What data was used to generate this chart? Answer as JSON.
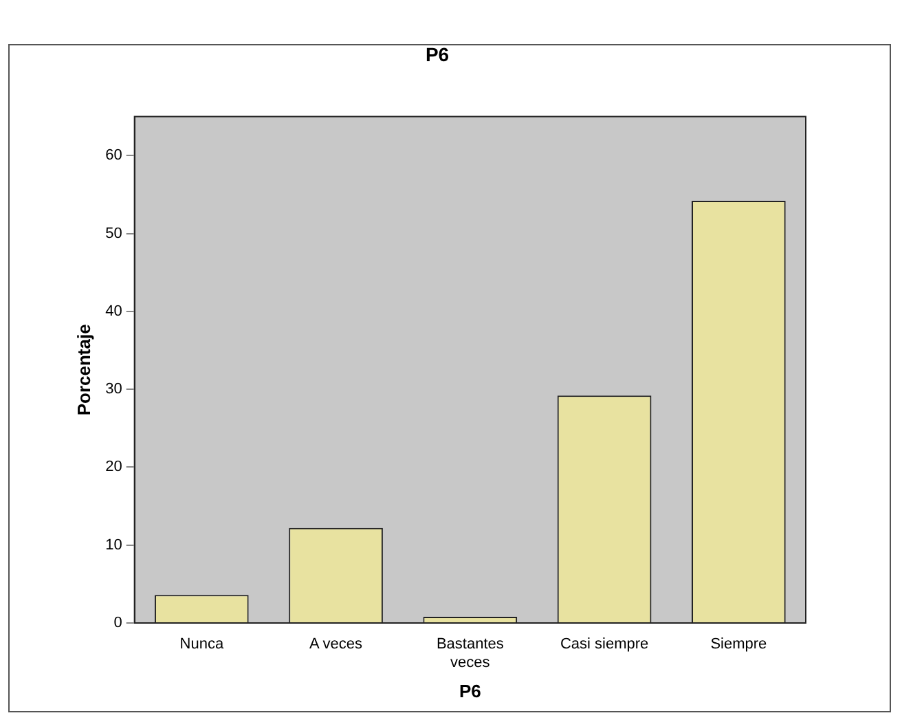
{
  "chart_data": {
    "type": "bar",
    "title": "P6",
    "xlabel": "P6",
    "ylabel": "Porcentaje",
    "categories": [
      "Nunca",
      "A veces",
      "Bastantes\nveces",
      "Casi siempre",
      "Siempre"
    ],
    "values": [
      3.6,
      12.2,
      0.8,
      29.2,
      54.2
    ],
    "color": "#e8e2a0",
    "ylim": [
      0,
      65
    ],
    "yticks": [
      0,
      10,
      20,
      30,
      40,
      50,
      60
    ],
    "grid": false,
    "legend": false
  }
}
